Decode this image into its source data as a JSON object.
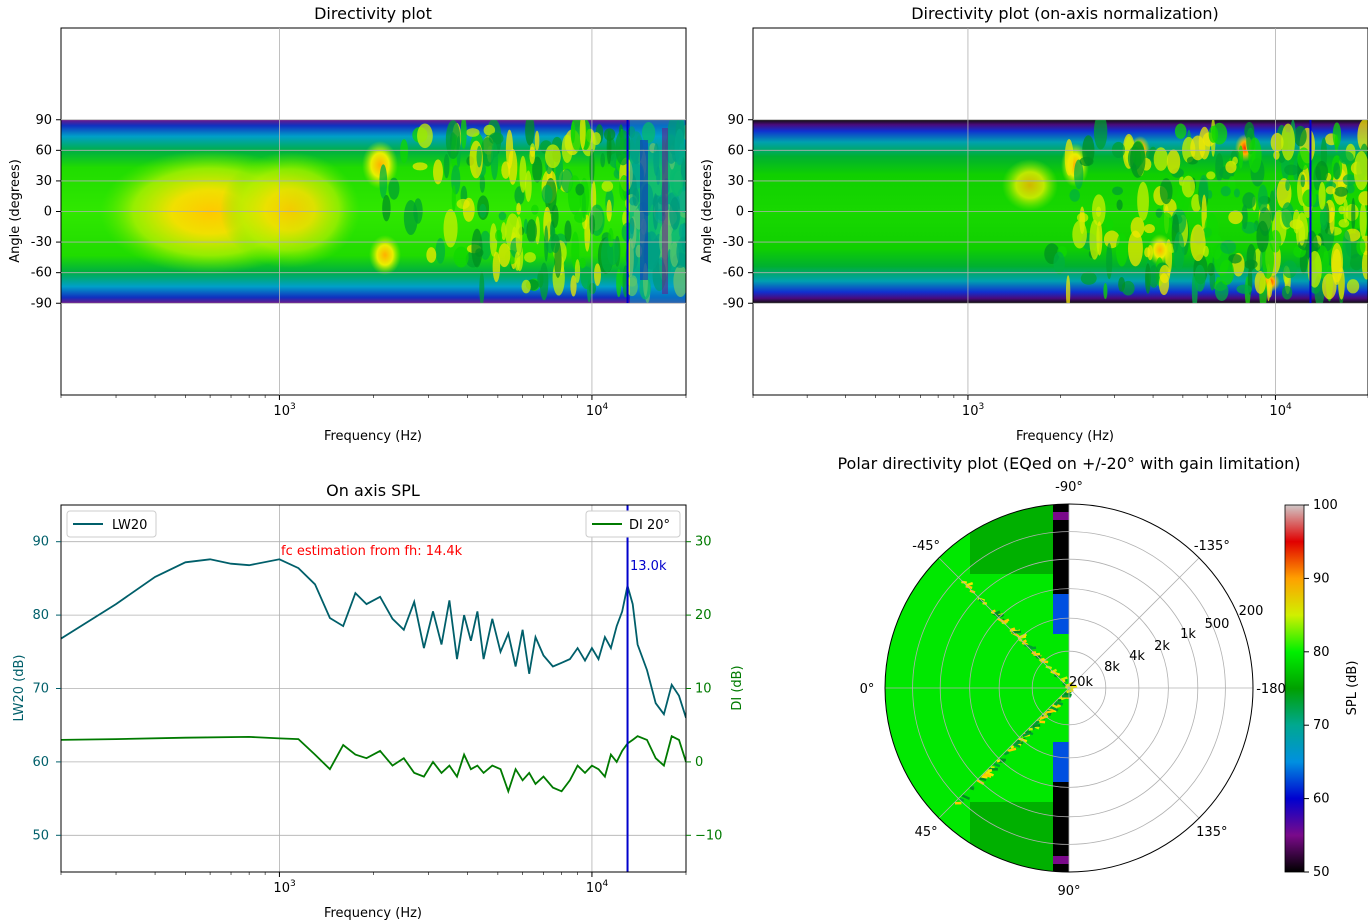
{
  "chart_data": [
    {
      "type": "heatmap",
      "id": "directivity",
      "title": "Directivity plot",
      "xlabel": "Frequency (Hz)",
      "ylabel": "Angle (degrees)",
      "x_scale": "log",
      "xlim": [
        200,
        20000
      ],
      "ylim": [
        -180,
        180
      ],
      "data_range": [
        -90,
        90
      ],
      "yticks": [
        "90",
        "60",
        "30",
        "0",
        "-30",
        "-60",
        "-90"
      ],
      "ytick_values": [
        90,
        60,
        30,
        0,
        -30,
        -60,
        -90
      ],
      "xticks": [
        {
          "base": "10",
          "exp": "3",
          "value": 1000
        },
        {
          "base": "10",
          "exp": "4",
          "value": 10000
        }
      ],
      "marker_frequency": 13000,
      "marker_color": "#0000cc",
      "grid": true,
      "normalization": "raw"
    },
    {
      "type": "heatmap",
      "id": "directivity_normalized",
      "title": "Directivity plot (on-axis normalization)",
      "xlabel": "Frequency (Hz)",
      "ylabel": "Angle (degrees)",
      "x_scale": "log",
      "xlim": [
        200,
        20000
      ],
      "ylim": [
        -180,
        180
      ],
      "data_range": [
        -90,
        90
      ],
      "yticks": [
        "90",
        "60",
        "30",
        "0",
        "-30",
        "-60",
        "-90"
      ],
      "ytick_values": [
        90,
        60,
        30,
        0,
        -30,
        -60,
        -90
      ],
      "xticks": [
        {
          "base": "10",
          "exp": "3",
          "value": 1000
        },
        {
          "base": "10",
          "exp": "4",
          "value": 10000
        }
      ],
      "marker_frequency": 13000,
      "marker_color": "#0000cc",
      "grid": true,
      "normalization": "on-axis"
    },
    {
      "type": "line",
      "id": "on_axis",
      "title": "On axis SPL",
      "xlabel": "Frequency (Hz)",
      "ylabel": "LW20 (dB)",
      "ylabel_right": "DI (dB)",
      "x_scale": "log",
      "xlim": [
        200,
        20000
      ],
      "ylim": [
        45,
        95
      ],
      "ylim_right": [
        -15,
        35
      ],
      "yticks": [
        50,
        60,
        70,
        80,
        90
      ],
      "yticks_right": [
        "−10",
        "0",
        "10",
        "20",
        "30"
      ],
      "ytick_right_values": [
        -10,
        0,
        10,
        20,
        30
      ],
      "xticks": [
        {
          "base": "10",
          "exp": "3",
          "value": 1000
        },
        {
          "base": "10",
          "exp": "4",
          "value": 10000
        }
      ],
      "series": [
        {
          "name": "LW20",
          "axis": "left",
          "color": "#005f6a",
          "x": [
            200,
            300,
            400,
            500,
            600,
            700,
            800,
            1000,
            1150,
            1300,
            1450,
            1600,
            1750,
            1900,
            2100,
            2300,
            2500,
            2700,
            2900,
            3100,
            3300,
            3500,
            3700,
            3900,
            4100,
            4300,
            4500,
            4800,
            5100,
            5400,
            5700,
            6000,
            6300,
            6600,
            7000,
            7500,
            8000,
            8500,
            9000,
            9500,
            10000,
            10500,
            11000,
            11500,
            12000,
            12500,
            13000,
            13500,
            14000,
            15000,
            16000,
            17000,
            18000,
            19000,
            20000
          ],
          "y": [
            76.8,
            81.5,
            85.2,
            87.2,
            87.6,
            87.0,
            86.8,
            87.6,
            86.4,
            84.2,
            79.6,
            78.5,
            83.0,
            81.5,
            82.5,
            79.5,
            78.0,
            81.8,
            75.5,
            80.5,
            76.0,
            82.0,
            74.0,
            80.0,
            76.5,
            80.5,
            74.0,
            79.5,
            75.0,
            77.5,
            73.0,
            78.0,
            72.0,
            77.0,
            74.5,
            73.0,
            73.5,
            74.0,
            75.5,
            73.8,
            75.5,
            74.0,
            77.0,
            75.5,
            78.5,
            80.5,
            84.0,
            81.5,
            76.0,
            72.5,
            68.0,
            66.5,
            70.5,
            69.0,
            66.0
          ]
        },
        {
          "name": "DI 20°",
          "axis": "right",
          "color": "#007a00",
          "x": [
            200,
            300,
            500,
            800,
            1000,
            1150,
            1300,
            1450,
            1600,
            1750,
            1900,
            2100,
            2300,
            2500,
            2700,
            2900,
            3100,
            3300,
            3500,
            3700,
            3900,
            4100,
            4300,
            4500,
            4800,
            5100,
            5400,
            5700,
            6000,
            6300,
            6600,
            7000,
            7500,
            8000,
            8500,
            9000,
            9500,
            10000,
            10500,
            11000,
            11500,
            12000,
            12500,
            13000,
            13500,
            14000,
            15000,
            16000,
            17000,
            18000,
            19000,
            20000
          ],
          "y": [
            3.0,
            3.1,
            3.3,
            3.4,
            3.2,
            3.1,
            1.0,
            -1.0,
            2.3,
            1.0,
            0.5,
            1.5,
            -0.5,
            0.5,
            -1.5,
            -2.0,
            0.0,
            -1.5,
            -0.5,
            -2.0,
            1.0,
            -1.0,
            -0.5,
            -1.5,
            -0.5,
            -1.0,
            -4.0,
            -1.0,
            -2.5,
            -1.5,
            -3.0,
            -2.0,
            -3.5,
            -4.0,
            -2.5,
            -0.5,
            -1.5,
            -0.5,
            -1.0,
            -2.0,
            1.0,
            0.0,
            1.5,
            2.5,
            3.0,
            3.5,
            3.0,
            0.5,
            -0.5,
            3.5,
            3.0,
            0.0
          ]
        }
      ],
      "annotations": [
        {
          "text": "fc estimation from fh: 14.4k",
          "color": "#ff0000"
        },
        {
          "text": "13.0k",
          "color": "#0000cc"
        }
      ],
      "marker_frequency": 13000,
      "legend": [
        "top-left",
        "top-right"
      ],
      "grid": true
    },
    {
      "type": "heatmap",
      "id": "polar",
      "title": "Polar directivity plot (EQed on +/-20° with gain limitation)",
      "angle_labels": [
        {
          "text": "-90°",
          "deg": -90
        },
        {
          "text": "-135°",
          "deg": -45
        },
        {
          "text": "-180",
          "deg": 0
        },
        {
          "text": "135°",
          "deg": 45
        },
        {
          "text": "90°",
          "deg": 90
        },
        {
          "text": "45°",
          "deg": 135
        },
        {
          "text": "0°",
          "deg": 180
        },
        {
          "text": "-45°",
          "deg": 225
        }
      ],
      "radial_labels": [
        "200",
        "500",
        "1k",
        "2k",
        "4k",
        "8k",
        "20k"
      ],
      "colorbar": {
        "label": "SPL (dB)",
        "ticks": [
          100,
          90,
          80,
          70,
          60,
          50
        ],
        "range": [
          50,
          100
        ]
      }
    }
  ]
}
